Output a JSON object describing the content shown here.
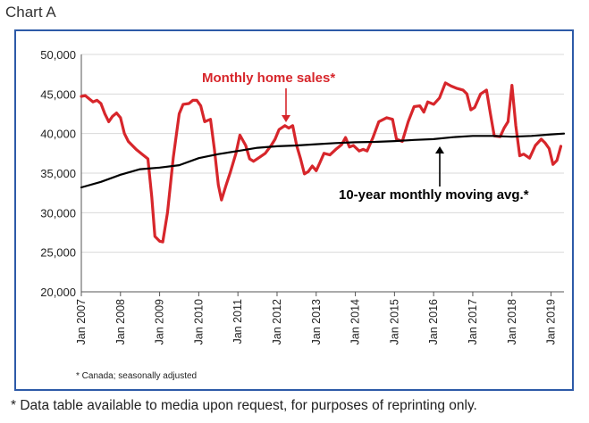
{
  "page": {
    "chart_label": "Chart A",
    "footnote": "* Data table available to media upon request, for purposes of reprinting only."
  },
  "colors": {
    "border": "#2d5aa8",
    "sales": "#d7262b",
    "average": "#000000",
    "grid": "#d9d9d9"
  },
  "chart_data": {
    "type": "line",
    "title": "",
    "xlabel": "",
    "ylabel": "",
    "ylim": [
      20000,
      50000
    ],
    "xlim": [
      2007.0,
      2019.33
    ],
    "grid": true,
    "y_ticks": [
      "20,000",
      "25,000",
      "30,000",
      "35,000",
      "40,000",
      "45,000",
      "50,000"
    ],
    "y_tick_values": [
      20000,
      25000,
      30000,
      35000,
      40000,
      45000,
      50000
    ],
    "x_ticks": [
      "Jan 2007",
      "Jan 2008",
      "Jan 2009",
      "Jan 2010",
      "Jan 2011",
      "Jan 2012",
      "Jan 2013",
      "Jan 2014",
      "Jan 2015",
      "Jan 2016",
      "Jan 2017",
      "Jan 2018",
      "Jan 2019"
    ],
    "x_tick_values": [
      2007,
      2008,
      2009,
      2010,
      2011,
      2012,
      2013,
      2014,
      2015,
      2016,
      2017,
      2018,
      2019
    ],
    "annotations": {
      "sales": "Monthly home sales*",
      "average": "10-year monthly moving avg.*",
      "note": "* Canada; seasonally adjusted"
    },
    "series": [
      {
        "name": "Monthly home sales*",
        "color": "#d7262b",
        "points": [
          [
            2007.0,
            44700
          ],
          [
            2007.1,
            44800
          ],
          [
            2007.2,
            44400
          ],
          [
            2007.3,
            44000
          ],
          [
            2007.4,
            44200
          ],
          [
            2007.5,
            43800
          ],
          [
            2007.6,
            42500
          ],
          [
            2007.7,
            41500
          ],
          [
            2007.8,
            42200
          ],
          [
            2007.9,
            42600
          ],
          [
            2008.0,
            42000
          ],
          [
            2008.1,
            40000
          ],
          [
            2008.2,
            39000
          ],
          [
            2008.4,
            38000
          ],
          [
            2008.55,
            37400
          ],
          [
            2008.7,
            36800
          ],
          [
            2008.8,
            32000
          ],
          [
            2008.88,
            27000
          ],
          [
            2009.0,
            26400
          ],
          [
            2009.08,
            26300
          ],
          [
            2009.2,
            30000
          ],
          [
            2009.35,
            37000
          ],
          [
            2009.5,
            42500
          ],
          [
            2009.6,
            43700
          ],
          [
            2009.75,
            43800
          ],
          [
            2009.85,
            44200
          ],
          [
            2009.95,
            44200
          ],
          [
            2010.05,
            43500
          ],
          [
            2010.15,
            41500
          ],
          [
            2010.3,
            41800
          ],
          [
            2010.4,
            38000
          ],
          [
            2010.5,
            33500
          ],
          [
            2010.58,
            31600
          ],
          [
            2010.7,
            33500
          ],
          [
            2010.8,
            35000
          ],
          [
            2010.95,
            37500
          ],
          [
            2011.05,
            39800
          ],
          [
            2011.2,
            38500
          ],
          [
            2011.3,
            36800
          ],
          [
            2011.4,
            36500
          ],
          [
            2011.55,
            37000
          ],
          [
            2011.7,
            37500
          ],
          [
            2011.85,
            38500
          ],
          [
            2011.95,
            39300
          ],
          [
            2012.05,
            40500
          ],
          [
            2012.2,
            41000
          ],
          [
            2012.3,
            40700
          ],
          [
            2012.4,
            41000
          ],
          [
            2012.5,
            38500
          ],
          [
            2012.6,
            36800
          ],
          [
            2012.7,
            34900
          ],
          [
            2012.8,
            35200
          ],
          [
            2012.9,
            35900
          ],
          [
            2013.0,
            35300
          ],
          [
            2013.1,
            36400
          ],
          [
            2013.2,
            37500
          ],
          [
            2013.35,
            37300
          ],
          [
            2013.5,
            38000
          ],
          [
            2013.65,
            38600
          ],
          [
            2013.75,
            39500
          ],
          [
            2013.85,
            38300
          ],
          [
            2013.95,
            38500
          ],
          [
            2014.1,
            37800
          ],
          [
            2014.2,
            38000
          ],
          [
            2014.3,
            37800
          ],
          [
            2014.45,
            39500
          ],
          [
            2014.6,
            41500
          ],
          [
            2014.8,
            42000
          ],
          [
            2014.95,
            41800
          ],
          [
            2015.05,
            39300
          ],
          [
            2015.2,
            39000
          ],
          [
            2015.35,
            41500
          ],
          [
            2015.5,
            43400
          ],
          [
            2015.65,
            43500
          ],
          [
            2015.75,
            42700
          ],
          [
            2015.85,
            44000
          ],
          [
            2016.0,
            43700
          ],
          [
            2016.15,
            44500
          ],
          [
            2016.3,
            46400
          ],
          [
            2016.45,
            46000
          ],
          [
            2016.6,
            45700
          ],
          [
            2016.75,
            45500
          ],
          [
            2016.85,
            45000
          ],
          [
            2016.95,
            43000
          ],
          [
            2017.05,
            43300
          ],
          [
            2017.2,
            45000
          ],
          [
            2017.35,
            45500
          ],
          [
            2017.45,
            42500
          ],
          [
            2017.55,
            39700
          ],
          [
            2017.7,
            39600
          ],
          [
            2017.8,
            40700
          ],
          [
            2017.9,
            41500
          ],
          [
            2018.0,
            46100
          ],
          [
            2018.1,
            41000
          ],
          [
            2018.2,
            37200
          ],
          [
            2018.3,
            37400
          ],
          [
            2018.45,
            36900
          ],
          [
            2018.6,
            38500
          ],
          [
            2018.75,
            39300
          ],
          [
            2018.85,
            38800
          ],
          [
            2018.95,
            38100
          ],
          [
            2019.05,
            36100
          ],
          [
            2019.15,
            36600
          ],
          [
            2019.25,
            38400
          ]
        ]
      },
      {
        "name": "10-year monthly moving avg.*",
        "color": "#000000",
        "points": [
          [
            2007.0,
            33200
          ],
          [
            2007.5,
            33900
          ],
          [
            2008.0,
            34800
          ],
          [
            2008.5,
            35500
          ],
          [
            2009.0,
            35700
          ],
          [
            2009.5,
            36000
          ],
          [
            2010.0,
            36900
          ],
          [
            2010.5,
            37400
          ],
          [
            2011.0,
            37800
          ],
          [
            2011.5,
            38200
          ],
          [
            2012.0,
            38400
          ],
          [
            2012.5,
            38500
          ],
          [
            2013.0,
            38650
          ],
          [
            2013.5,
            38800
          ],
          [
            2014.0,
            38900
          ],
          [
            2014.5,
            38950
          ],
          [
            2015.0,
            39050
          ],
          [
            2015.5,
            39200
          ],
          [
            2016.0,
            39300
          ],
          [
            2016.5,
            39550
          ],
          [
            2017.0,
            39700
          ],
          [
            2017.5,
            39700
          ],
          [
            2018.0,
            39600
          ],
          [
            2018.5,
            39700
          ],
          [
            2019.0,
            39900
          ],
          [
            2019.33,
            40000
          ]
        ]
      }
    ]
  }
}
